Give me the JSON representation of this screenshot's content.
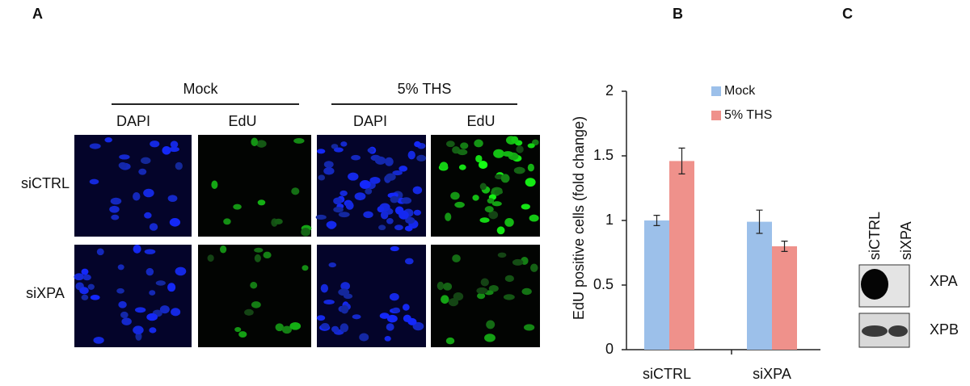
{
  "panel_a": {
    "label": "A",
    "groups": [
      "Mock",
      "5% THS"
    ],
    "stains": [
      "DAPI",
      "EdU",
      "DAPI",
      "EdU"
    ],
    "rows": [
      "siCTRL",
      "siXPA"
    ]
  },
  "chart_data": {
    "type": "bar",
    "label": "B",
    "ylabel": "EdU positive cells (fold change)",
    "categories": [
      "siCTRL",
      "siXPA"
    ],
    "series": [
      {
        "name": "Mock",
        "color": "#9cc0ea",
        "values": [
          1.0,
          0.99
        ],
        "errors": [
          0.04,
          0.09
        ]
      },
      {
        "name": "5% THS",
        "color": "#ef918b",
        "values": [
          1.46,
          0.8
        ],
        "errors": [
          0.1,
          0.04
        ]
      }
    ],
    "ylim": [
      0,
      2
    ],
    "yticks": [
      0,
      0.5,
      1,
      1.5,
      2
    ],
    "legend": "top-right"
  },
  "panel_c": {
    "label": "C",
    "lanes": [
      "siCTRL",
      "siXPA"
    ],
    "bands": [
      "XPA",
      "XPB"
    ]
  }
}
